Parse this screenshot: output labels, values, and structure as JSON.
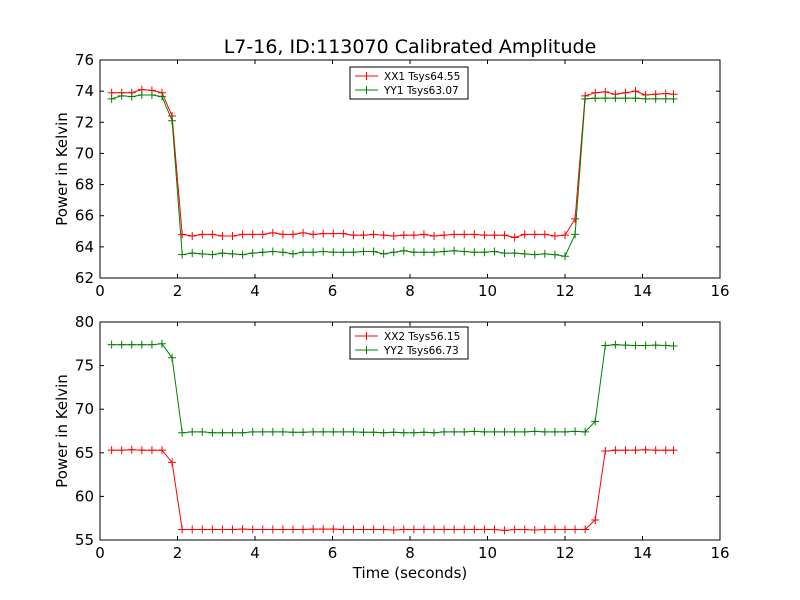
{
  "title": "L7-16, ID:113070 Calibrated Amplitude",
  "chart_data": [
    {
      "type": "line",
      "xlabel": "",
      "ylabel": "Power in Kelvin",
      "xlim": [
        0,
        16
      ],
      "ylim": [
        62,
        76
      ],
      "xticks": [
        "0",
        "2",
        "4",
        "6",
        "8",
        "10",
        "12",
        "14",
        "16"
      ],
      "yticks": [
        "62",
        "64",
        "66",
        "68",
        "70",
        "72",
        "74",
        "76"
      ],
      "legend_position": "top-center",
      "x": [
        0.3,
        0.56,
        0.82,
        1.08,
        1.34,
        1.6,
        1.86,
        2.12,
        2.38,
        2.64,
        2.9,
        3.16,
        3.42,
        3.68,
        3.94,
        4.2,
        4.46,
        4.72,
        4.98,
        5.24,
        5.5,
        5.76,
        6.02,
        6.28,
        6.54,
        6.8,
        7.06,
        7.32,
        7.58,
        7.84,
        8.1,
        8.36,
        8.62,
        8.88,
        9.14,
        9.4,
        9.66,
        9.92,
        10.18,
        10.44,
        10.7,
        10.96,
        11.22,
        11.48,
        11.74,
        12.0,
        12.26,
        12.52,
        12.78,
        13.04,
        13.3,
        13.56,
        13.82,
        14.08,
        14.34,
        14.6,
        14.8
      ],
      "series": [
        {
          "name": "XX1 Tsys64.55",
          "color": "#ff0000",
          "values": [
            73.9,
            73.9,
            73.9,
            74.1,
            74.05,
            73.9,
            72.4,
            64.8,
            64.7,
            64.8,
            64.8,
            64.7,
            64.7,
            64.8,
            64.8,
            64.8,
            64.9,
            64.8,
            64.8,
            64.9,
            64.8,
            64.85,
            64.85,
            64.85,
            64.75,
            64.75,
            64.8,
            64.75,
            64.7,
            64.75,
            64.75,
            64.8,
            64.7,
            64.75,
            64.8,
            64.8,
            64.8,
            64.75,
            64.75,
            64.75,
            64.6,
            64.8,
            64.8,
            64.8,
            64.7,
            64.75,
            65.8,
            73.7,
            73.9,
            73.95,
            73.8,
            73.9,
            74.0,
            73.75,
            73.8,
            73.85,
            73.8
          ]
        },
        {
          "name": "YY1 Tsys63.07",
          "color": "#008000",
          "values": [
            73.5,
            73.7,
            73.65,
            73.75,
            73.75,
            73.65,
            72.1,
            63.5,
            63.6,
            63.55,
            63.5,
            63.6,
            63.55,
            63.5,
            63.6,
            63.65,
            63.7,
            63.65,
            63.55,
            63.65,
            63.65,
            63.7,
            63.65,
            63.65,
            63.65,
            63.7,
            63.7,
            63.55,
            63.65,
            63.75,
            63.65,
            63.65,
            63.65,
            63.7,
            63.75,
            63.7,
            63.65,
            63.65,
            63.7,
            63.6,
            63.6,
            63.55,
            63.5,
            63.55,
            63.5,
            63.4,
            64.8,
            73.5,
            73.55,
            73.55,
            73.55,
            73.55,
            73.55,
            73.5,
            73.5,
            73.5,
            73.5
          ]
        }
      ]
    },
    {
      "type": "line",
      "xlabel": "Time (seconds)",
      "ylabel": "Power in Kelvin",
      "xlim": [
        0,
        16
      ],
      "ylim": [
        55,
        80
      ],
      "xticks": [
        "0",
        "2",
        "4",
        "6",
        "8",
        "10",
        "12",
        "14",
        "16"
      ],
      "yticks": [
        "55",
        "60",
        "65",
        "70",
        "75",
        "80"
      ],
      "legend_position": "top-center",
      "x": [
        0.3,
        0.56,
        0.82,
        1.08,
        1.34,
        1.6,
        1.86,
        2.12,
        2.38,
        2.64,
        2.9,
        3.16,
        3.42,
        3.68,
        3.94,
        4.2,
        4.46,
        4.72,
        4.98,
        5.24,
        5.5,
        5.76,
        6.02,
        6.28,
        6.54,
        6.8,
        7.06,
        7.32,
        7.58,
        7.84,
        8.1,
        8.36,
        8.62,
        8.88,
        9.14,
        9.4,
        9.66,
        9.92,
        10.18,
        10.44,
        10.7,
        10.96,
        11.22,
        11.48,
        11.74,
        12.0,
        12.26,
        12.52,
        12.78,
        13.04,
        13.3,
        13.56,
        13.82,
        14.08,
        14.34,
        14.6,
        14.8
      ],
      "series": [
        {
          "name": "XX2 Tsys56.15",
          "color": "#ff0000",
          "values": [
            65.3,
            65.3,
            65.35,
            65.3,
            65.3,
            65.3,
            63.9,
            56.2,
            56.2,
            56.2,
            56.2,
            56.2,
            56.2,
            56.25,
            56.2,
            56.2,
            56.2,
            56.2,
            56.2,
            56.2,
            56.25,
            56.25,
            56.25,
            56.2,
            56.2,
            56.2,
            56.2,
            56.2,
            56.15,
            56.2,
            56.2,
            56.2,
            56.2,
            56.2,
            56.2,
            56.2,
            56.2,
            56.2,
            56.2,
            56.1,
            56.2,
            56.2,
            56.15,
            56.2,
            56.2,
            56.2,
            56.2,
            56.2,
            57.3,
            65.2,
            65.3,
            65.3,
            65.3,
            65.35,
            65.3,
            65.3,
            65.3
          ]
        },
        {
          "name": "YY2 Tsys66.73",
          "color": "#008000",
          "values": [
            77.4,
            77.4,
            77.4,
            77.4,
            77.4,
            77.5,
            75.9,
            67.3,
            67.4,
            67.4,
            67.3,
            67.3,
            67.3,
            67.3,
            67.4,
            67.4,
            67.4,
            67.4,
            67.35,
            67.35,
            67.4,
            67.4,
            67.4,
            67.4,
            67.4,
            67.35,
            67.35,
            67.3,
            67.35,
            67.3,
            67.3,
            67.35,
            67.3,
            67.4,
            67.4,
            67.4,
            67.45,
            67.4,
            67.4,
            67.4,
            67.4,
            67.4,
            67.45,
            67.4,
            67.4,
            67.4,
            67.45,
            67.4,
            68.6,
            77.3,
            77.4,
            77.35,
            77.3,
            77.3,
            77.35,
            77.3,
            77.25
          ]
        }
      ]
    }
  ]
}
